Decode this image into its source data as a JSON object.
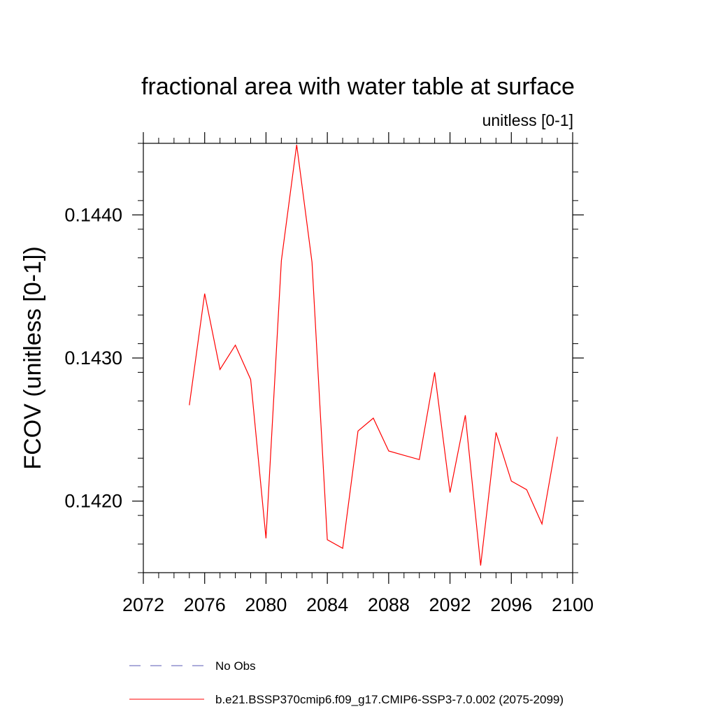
{
  "chart_data": {
    "type": "line",
    "title": "fractional area with water table at surface",
    "units_label": "unitless [0-1]",
    "ylabel": "FCOV  (unitless [0-1])",
    "xlabel": "",
    "xlim": [
      2072,
      2100
    ],
    "ylim": [
      0.1415,
      0.1445
    ],
    "x_ticks": [
      2072,
      2076,
      2080,
      2084,
      2088,
      2092,
      2096,
      2100
    ],
    "x_tick_labels": [
      "2072",
      "2076",
      "2080",
      "2084",
      "2088",
      "2092",
      "2096",
      "2100"
    ],
    "x_minor_step": 1,
    "y_ticks": [
      0.142,
      0.143,
      0.144
    ],
    "y_tick_labels": [
      "0.1420",
      "0.1430",
      "0.1440"
    ],
    "y_minor_step": 0.0002,
    "grid": false,
    "series": [
      {
        "name": "b.e21.BSSP370cmip6.f09_g17.CMIP6-SSP3-7.0.002 (2075-2099)",
        "color": "#ff0000",
        "dash": "solid",
        "x": [
          2075,
          2076,
          2077,
          2078,
          2079,
          2080,
          2081,
          2082,
          2083,
          2084,
          2085,
          2086,
          2087,
          2088,
          2089,
          2090,
          2091,
          2092,
          2093,
          2094,
          2095,
          2096,
          2097,
          2098,
          2099
        ],
        "values": [
          0.14267,
          0.14345,
          0.14292,
          0.14309,
          0.14285,
          0.14174,
          0.14368,
          0.14449,
          0.14367,
          0.14173,
          0.14167,
          0.14249,
          0.14258,
          0.14235,
          0.14232,
          0.14229,
          0.1429,
          0.14206,
          0.1426,
          0.14155,
          0.14248,
          0.14214,
          0.14208,
          0.14184,
          0.14245
        ]
      }
    ],
    "legend": {
      "placement": "bottom",
      "entries": [
        {
          "label": "No Obs",
          "color": "#5a5ab4",
          "dash": "dashed"
        },
        {
          "label": "b.e21.BSSP370cmip6.f09_g17.CMIP6-SSP3-7.0.002 (2075-2099)",
          "color": "#ff0000",
          "dash": "solid"
        }
      ]
    }
  }
}
